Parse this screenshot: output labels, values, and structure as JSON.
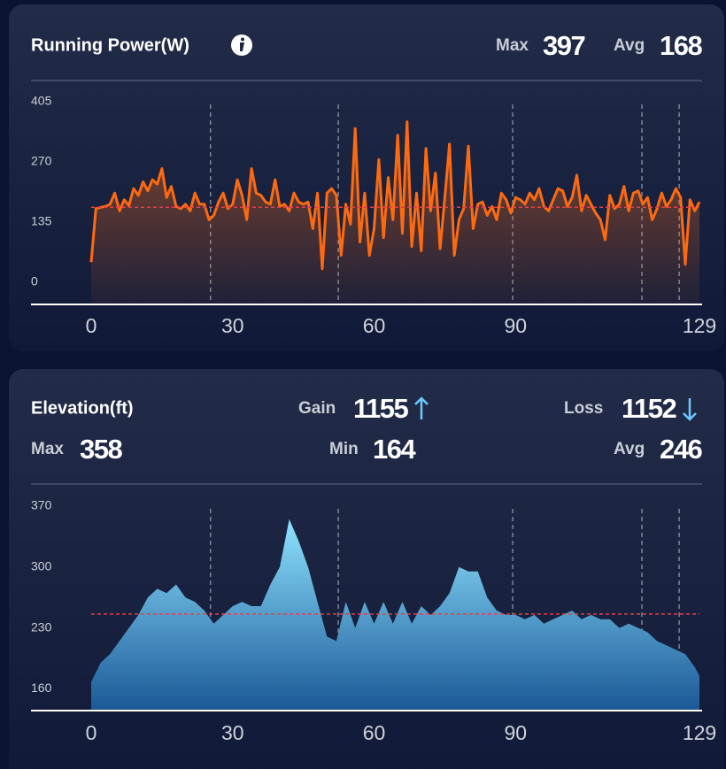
{
  "chart_data": [
    {
      "type": "line",
      "title": "Running Power(W)",
      "color": "#ff6a10",
      "stats": [
        {
          "label": "Max",
          "value": 397
        },
        {
          "label": "Avg",
          "value": 168
        }
      ],
      "xlim": [
        0,
        129
      ],
      "xticks": [
        0,
        30,
        60,
        90,
        129
      ],
      "ylim": [
        -50,
        405
      ],
      "yticks": [
        0,
        135,
        270,
        405
      ],
      "markers": [
        25.3,
        52.4,
        89.4,
        116.8,
        124.7
      ],
      "x": [
        0,
        1,
        2,
        3,
        4,
        5,
        6,
        7,
        8,
        9,
        10,
        11,
        12,
        13,
        14,
        15,
        16,
        17,
        18,
        19,
        20,
        21,
        22,
        23,
        24,
        25,
        26,
        27,
        28,
        29,
        30,
        31,
        32,
        33,
        34,
        35,
        36,
        37,
        38,
        39,
        40,
        41,
        42,
        43,
        44,
        45,
        46,
        47,
        48,
        49,
        50,
        51,
        52,
        53,
        54,
        55,
        56,
        57,
        58,
        59,
        60,
        61,
        62,
        63,
        64,
        65,
        66,
        67,
        68,
        69,
        70,
        71,
        72,
        73,
        74,
        75,
        76,
        77,
        78,
        79,
        80,
        81,
        82,
        83,
        84,
        85,
        86,
        87,
        88,
        89,
        90,
        91,
        92,
        93,
        94,
        95,
        96,
        97,
        98,
        99,
        100,
        101,
        102,
        103,
        104,
        105,
        106,
        107,
        108,
        109,
        110,
        111,
        112,
        113,
        114,
        115,
        116,
        117,
        118,
        119,
        120,
        121,
        122,
        123,
        124,
        125,
        126,
        127,
        128,
        129
      ],
      "values": [
        45,
        165,
        168,
        170,
        175,
        200,
        160,
        185,
        172,
        210,
        195,
        225,
        205,
        230,
        220,
        255,
        190,
        215,
        170,
        165,
        175,
        160,
        200,
        175,
        175,
        140,
        150,
        180,
        200,
        165,
        175,
        230,
        195,
        140,
        255,
        200,
        195,
        180,
        175,
        230,
        170,
        175,
        160,
        200,
        180,
        175,
        180,
        120,
        200,
        30,
        200,
        210,
        195,
        60,
        175,
        130,
        345,
        90,
        200,
        60,
        120,
        275,
        100,
        235,
        140,
        330,
        110,
        360,
        80,
        200,
        70,
        300,
        160,
        245,
        75,
        190,
        310,
        60,
        140,
        165,
        305,
        120,
        175,
        180,
        150,
        170,
        140,
        200,
        185,
        155,
        190,
        185,
        175,
        200,
        185,
        210,
        170,
        160,
        185,
        210,
        205,
        170,
        190,
        240,
        160,
        195,
        175,
        155,
        140,
        95,
        195,
        165,
        175,
        215,
        160,
        200,
        205,
        175,
        190,
        140,
        165,
        200,
        170,
        185,
        210,
        190,
        40,
        185,
        160,
        180
      ]
    },
    {
      "type": "area",
      "title": "Elevation(ft)",
      "color": "#8ee2ff",
      "stats": [
        {
          "label": "Gain",
          "value": 1155
        },
        {
          "label": "Loss",
          "value": 1152
        },
        {
          "label": "Max",
          "value": 358
        },
        {
          "label": "Min",
          "value": 164
        },
        {
          "label": "Avg",
          "value": 246
        }
      ],
      "xlim": [
        0,
        129
      ],
      "xticks": [
        0,
        30,
        60,
        90,
        129
      ],
      "ylim": [
        135,
        370
      ],
      "yticks": [
        160,
        230,
        300,
        370
      ],
      "markers": [
        25.3,
        52.4,
        89.4,
        116.8,
        124.7
      ],
      "x": [
        0,
        2,
        4,
        6,
        8,
        10,
        12,
        14,
        16,
        18,
        20,
        22,
        24,
        26,
        28,
        30,
        32,
        34,
        36,
        38,
        40,
        42,
        44,
        46,
        48,
        50,
        52,
        54,
        56,
        58,
        60,
        62,
        64,
        66,
        68,
        70,
        72,
        74,
        76,
        78,
        80,
        82,
        84,
        86,
        88,
        90,
        92,
        94,
        96,
        98,
        100,
        102,
        104,
        106,
        108,
        110,
        112,
        114,
        116,
        118,
        120,
        122,
        124,
        126,
        128,
        129
      ],
      "values": [
        168,
        190,
        200,
        215,
        230,
        245,
        265,
        275,
        270,
        280,
        265,
        260,
        250,
        235,
        245,
        255,
        260,
        255,
        255,
        280,
        300,
        355,
        330,
        300,
        260,
        220,
        215,
        260,
        230,
        260,
        235,
        260,
        235,
        260,
        235,
        255,
        245,
        255,
        270,
        300,
        295,
        295,
        265,
        250,
        245,
        245,
        240,
        245,
        235,
        240,
        245,
        250,
        240,
        245,
        240,
        240,
        230,
        235,
        230,
        225,
        215,
        210,
        205,
        200,
        185,
        175
      ]
    }
  ]
}
